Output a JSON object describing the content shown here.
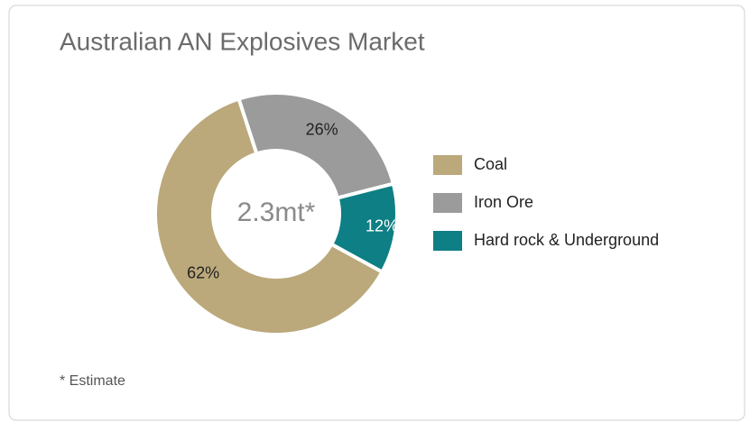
{
  "chart_data": {
    "type": "donut",
    "title": "Australian AN Explosives Market",
    "center_label": "2.3mt*",
    "footnote": "* Estimate",
    "categories": [
      "Coal",
      "Iron Ore",
      "Hard rock & Underground"
    ],
    "values": [
      62,
      26,
      12
    ],
    "value_labels": [
      "62%",
      "26%",
      "12%"
    ],
    "colors": [
      "#bba97b",
      "#9b9b9b",
      "#0e7f84"
    ],
    "legend": "right"
  }
}
